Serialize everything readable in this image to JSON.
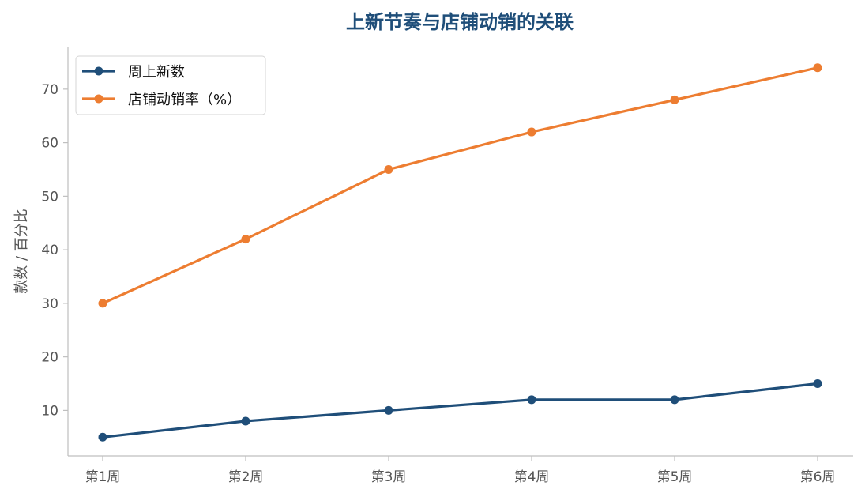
{
  "chart_data": {
    "type": "line",
    "title": "上新节奏与店铺动销的关联",
    "xlabel": "",
    "ylabel": "款数 / 百分比",
    "categories": [
      "第1周",
      "第2周",
      "第3周",
      "第4周",
      "第5周",
      "第6周"
    ],
    "ylim": [
      1.5,
      77.8
    ],
    "yticks": [
      10,
      20,
      30,
      40,
      50,
      60,
      70
    ],
    "grid": false,
    "legend_position": "top-left",
    "series": [
      {
        "name": "周上新数",
        "values": [
          5,
          8,
          10,
          12,
          12,
          15
        ],
        "color": "#1f4e79"
      },
      {
        "name": "店铺动销率（%）",
        "values": [
          30,
          42,
          55,
          62,
          68,
          74
        ],
        "color": "#ed7d31"
      }
    ],
    "colors": {
      "title": "#1f4e79",
      "axis": "#bfbfbf",
      "tick_text": "#555555"
    }
  }
}
